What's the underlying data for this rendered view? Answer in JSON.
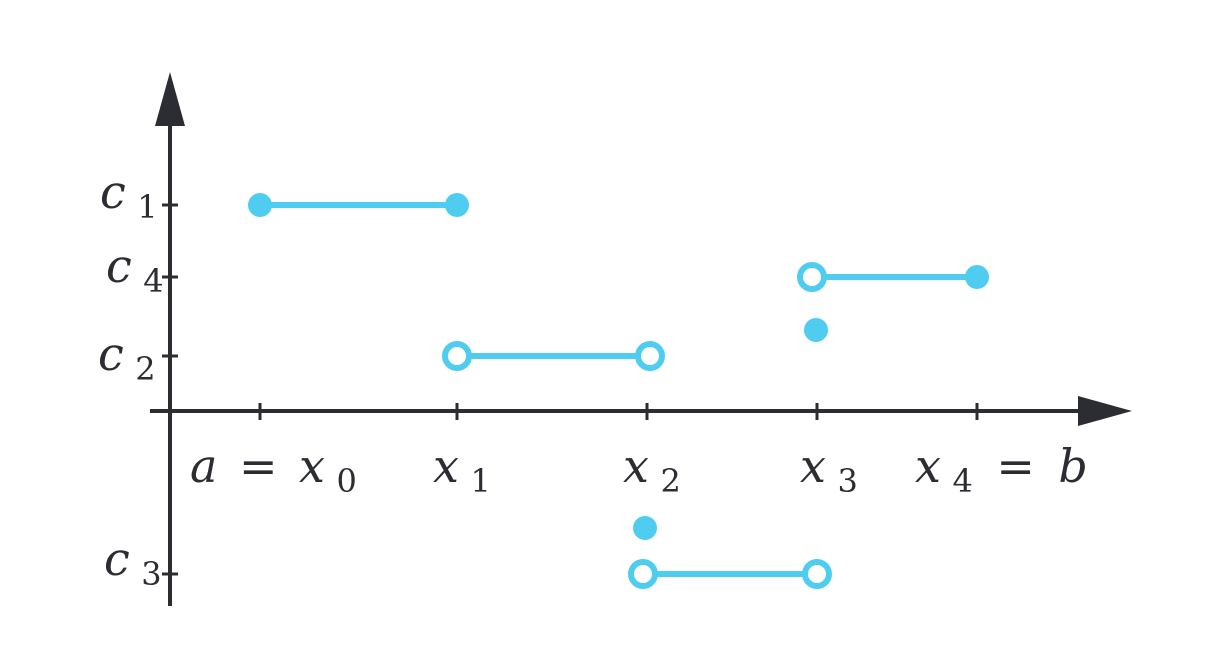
{
  "diagram": {
    "colors": {
      "axis": "#2b2d33",
      "step": "#4fcdf1",
      "background": "#ffffff"
    },
    "x_labels": {
      "x0": {
        "var": "a",
        "eq": "=",
        "sym": "x",
        "sub": "0"
      },
      "x1": {
        "sym": "x",
        "sub": "1"
      },
      "x2": {
        "sym": "x",
        "sub": "2"
      },
      "x3": {
        "sym": "x",
        "sub": "3"
      },
      "x4": {
        "sym": "x",
        "sub": "4",
        "eq": "=",
        "var": "b"
      }
    },
    "y_labels": {
      "c1": {
        "sym": "c",
        "sub": "1"
      },
      "c4": {
        "sym": "c",
        "sub": "4"
      },
      "c2": {
        "sym": "c",
        "sub": "2"
      },
      "c3": {
        "sym": "c",
        "sub": "3"
      }
    }
  }
}
